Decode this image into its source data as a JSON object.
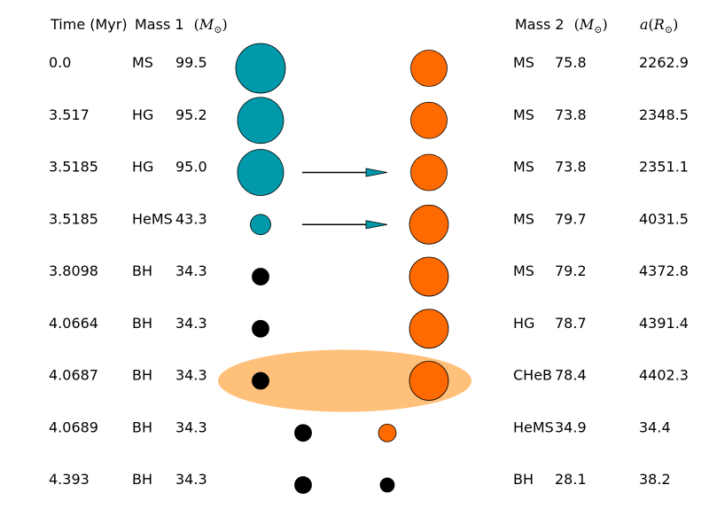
{
  "header": {
    "time": "Time (Myr)",
    "mass1": "Mass 1",
    "mass2": "Mass 2",
    "mass_unit": "(M⊙)",
    "mass_unit_symbol": "M",
    "sun_symbol": "⊙",
    "sep_a": "a",
    "sep_unit_symbol": "R"
  },
  "colors": {
    "star1": "#0099aa",
    "star2": "#ff6a00",
    "compact": "#000000",
    "common_envelope": "#ffc07a",
    "arrow": "#0099aa"
  },
  "rows": [
    {
      "time": "0.0",
      "type1": "MS",
      "mass1": "99.5",
      "type2": "MS",
      "mass2": "75.8",
      "sep": "2262.9",
      "star1": "donor",
      "star2": "normal",
      "transfer": false,
      "envelope": false,
      "merged_pos": false
    },
    {
      "time": "3.517",
      "type1": "HG",
      "mass1": "95.2",
      "type2": "MS",
      "mass2": "73.8",
      "sep": "2348.5",
      "star1": "donor",
      "star2": "normal",
      "transfer": false,
      "envelope": false,
      "merged_pos": false
    },
    {
      "time": "3.5185",
      "type1": "HG",
      "mass1": "95.0",
      "type2": "MS",
      "mass2": "73.8",
      "sep": "2351.1",
      "star1": "donor",
      "star2": "normal",
      "transfer": true,
      "envelope": false,
      "merged_pos": false
    },
    {
      "time": "3.5185",
      "type1": "HeMS",
      "mass1": "43.3",
      "type2": "MS",
      "mass2": "79.7",
      "sep": "4031.5",
      "star1": "helium",
      "star2": "normal",
      "transfer": true,
      "envelope": false,
      "merged_pos": false
    },
    {
      "time": "3.8098",
      "type1": "BH",
      "mass1": "34.3",
      "type2": "MS",
      "mass2": "79.2",
      "sep": "4372.8",
      "star1": "bh",
      "star2": "normal",
      "transfer": false,
      "envelope": false,
      "merged_pos": false
    },
    {
      "time": "4.0664",
      "type1": "BH",
      "mass1": "34.3",
      "type2": "HG",
      "mass2": "78.7",
      "sep": "4391.4",
      "star1": "bh",
      "star2": "normal",
      "transfer": false,
      "envelope": false,
      "merged_pos": false
    },
    {
      "time": "4.0687",
      "type1": "BH",
      "mass1": "34.3",
      "type2": "CHeB",
      "mass2": "78.4",
      "sep": "4402.3",
      "star1": "bh",
      "star2": "normal",
      "transfer": false,
      "envelope": true,
      "merged_pos": false
    },
    {
      "time": "4.0689",
      "type1": "BH",
      "mass1": "34.3",
      "type2": "HeMS",
      "mass2": "34.9",
      "sep": "34.4",
      "star1": "bh",
      "star2": "helium",
      "transfer": false,
      "envelope": false,
      "merged_pos": true
    },
    {
      "time": "4.393",
      "type1": "BH",
      "mass1": "34.3",
      "type2": "BH",
      "mass2": "28.1",
      "sep": "38.2",
      "star1": "bh",
      "star2": "bh",
      "transfer": false,
      "envelope": false,
      "merged_pos": true
    }
  ]
}
